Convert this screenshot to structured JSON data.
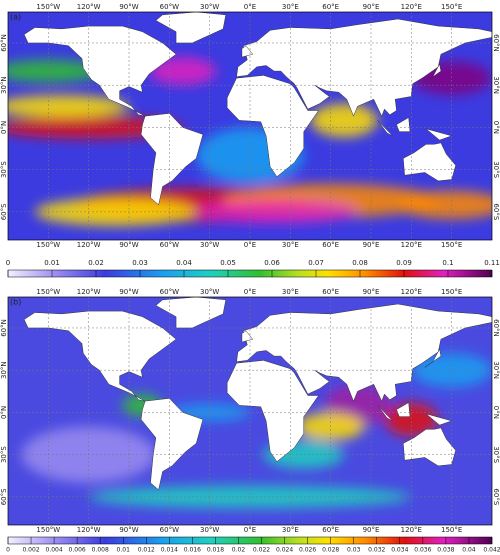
{
  "panels": [
    {
      "label": "(a)",
      "colorbar": {
        "lim": [
          0,
          0.11
        ],
        "ticks": [
          0,
          0.01,
          0.02,
          0.03,
          0.04,
          0.05,
          0.06,
          0.07,
          0.08,
          0.09,
          0.1,
          0.11
        ]
      }
    },
    {
      "label": "(b)",
      "colorbar": {
        "lim": [
          0,
          0.042
        ],
        "ticks": [
          0,
          0.002,
          0.004,
          0.006,
          0.008,
          0.01,
          0.012,
          0.014,
          0.016,
          0.018,
          0.02,
          0.022,
          0.024,
          0.026,
          0.028,
          0.03,
          0.032,
          0.034,
          0.036,
          0.038,
          0.04,
          0.042
        ]
      }
    }
  ],
  "lon_range": [
    -180,
    180
  ],
  "lat_range": [
    -80,
    82
  ],
  "lon_ticks": [
    {
      "value": -150,
      "label": "150°W"
    },
    {
      "value": -120,
      "label": "120°W"
    },
    {
      "value": -90,
      "label": "90°W"
    },
    {
      "value": -60,
      "label": "60°W"
    },
    {
      "value": -30,
      "label": "30°W"
    },
    {
      "value": 0,
      "label": "0°E"
    },
    {
      "value": 30,
      "label": "30°E"
    },
    {
      "value": 60,
      "label": "60°E"
    },
    {
      "value": 90,
      "label": "90°E"
    },
    {
      "value": 120,
      "label": "120°E"
    },
    {
      "value": 150,
      "label": "150°E"
    }
  ],
  "lat_ticks": [
    {
      "value": 60,
      "label": "60°N"
    },
    {
      "value": 30,
      "label": "30°N"
    },
    {
      "value": 0,
      "label": "0°N"
    },
    {
      "value": -30,
      "label": "30°S"
    },
    {
      "value": -60,
      "label": "60°S"
    }
  ]
}
